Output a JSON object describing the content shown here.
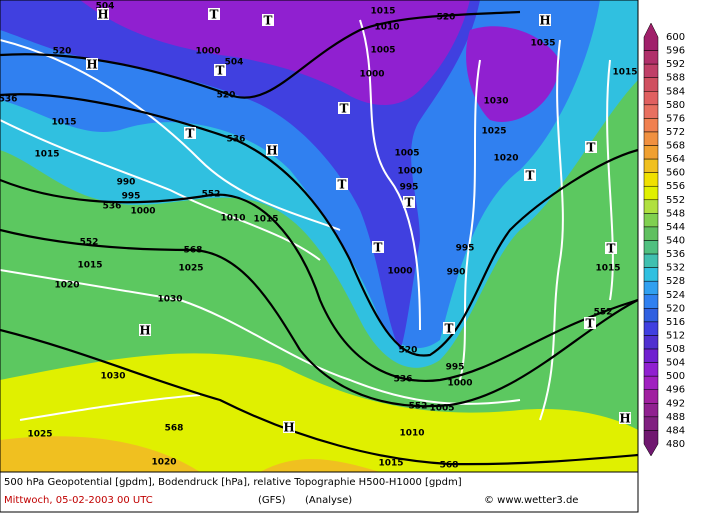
{
  "map": {
    "legend": {
      "labels": [
        600,
        596,
        592,
        588,
        584,
        580,
        576,
        572,
        568,
        564,
        560,
        556,
        552,
        548,
        544,
        540,
        536,
        532,
        528,
        524,
        520,
        516,
        512,
        508,
        504,
        500,
        496,
        492,
        488,
        484,
        480
      ],
      "colors": [
        "#a0206a",
        "#b0306a",
        "#c04068",
        "#d05060",
        "#e06060",
        "#e87060",
        "#f08050",
        "#f09040",
        "#f0a030",
        "#f0c020",
        "#f0e000",
        "#e0f000",
        "#b0e040",
        "#80d050",
        "#60c060",
        "#50c080",
        "#40c0b0",
        "#30c0e0",
        "#30a0f0",
        "#3080f0",
        "#3060e0",
        "#4040e0",
        "#5030d0",
        "#7020d0",
        "#9020d0",
        "#a020c0",
        "#a020a0",
        "#902090",
        "#802080",
        "#701870"
      ]
    },
    "labels": [
      "504",
      "520",
      "520",
      "536",
      "536",
      "552",
      "536",
      "552",
      "568",
      "520",
      "536",
      "552",
      "568",
      "552",
      "568",
      "504",
      "520",
      "1015",
      "1010",
      "1000",
      "1005",
      "1000",
      "1035",
      "1015",
      "1030",
      "1025",
      "1020",
      "1005",
      "1000",
      "995",
      "990",
      "995",
      "1000",
      "1010",
      "1015",
      "1015",
      "1015",
      "995",
      "990",
      "1000",
      "1015",
      "1025",
      "1020",
      "1030",
      "1030",
      "995",
      "1000",
      "1005",
      "1010",
      "1015",
      "1025",
      "1020",
      "1015",
      "H",
      "T",
      "T",
      "H",
      "H",
      "T",
      "T",
      "T",
      "H",
      "T",
      "T",
      "T",
      "T",
      "T",
      "T",
      "T",
      "T",
      "H",
      "H",
      "H"
    ],
    "footer": {
      "line1": "500 hPa Geopotential [gpdm], Bodendruck [hPa], relative Topographie H500-H1000 [gpdm]",
      "date": "Mittwoch, 05-02-2003  00 UTC",
      "model": "(GFS)",
      "run": "(Analyse)",
      "credit": "© www.wetter3.de"
    }
  }
}
